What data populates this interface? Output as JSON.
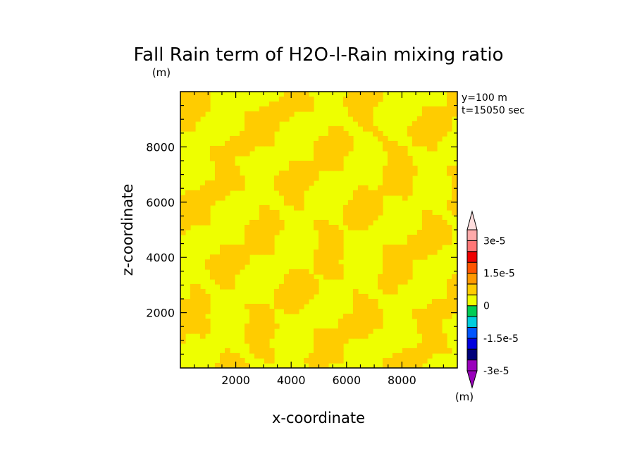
{
  "chart_data": {
    "type": "heatmap",
    "title": "Fall Rain term of H2O-l-Rain mixing ratio",
    "unit_top": "(m)",
    "unit_colorbar": "(m)",
    "annotations": [
      "y=100 m",
      "t=15050 sec"
    ],
    "xlabel": "x-coordinate",
    "ylabel": "z-coordinate",
    "xlim": [
      0,
      10000
    ],
    "ylim": [
      0,
      10000
    ],
    "x_ticks": [
      2000,
      4000,
      6000,
      8000
    ],
    "y_ticks": [
      2000,
      4000,
      6000,
      8000
    ],
    "colorbar": {
      "levels": [
        "-3e-5",
        "-1.5e-5",
        "0",
        "1.5e-5",
        "3e-5"
      ],
      "colors": [
        "#9900bb",
        "#00007a",
        "#0000dd",
        "#0055ff",
        "#00ccdd",
        "#00cc55",
        "#eeff00",
        "#ffcc00",
        "#ff9900",
        "#ff5500",
        "#ee0000",
        "#ff7777",
        "#ffaaaa",
        "#ffdddd"
      ]
    },
    "field_colors": {
      "zero_band": "#eeff00",
      "small_positive": "#ffcc00"
    },
    "description_values": {
      "min_visible_band": "0",
      "max_visible_band": "positive below 1.5e-5"
    }
  }
}
